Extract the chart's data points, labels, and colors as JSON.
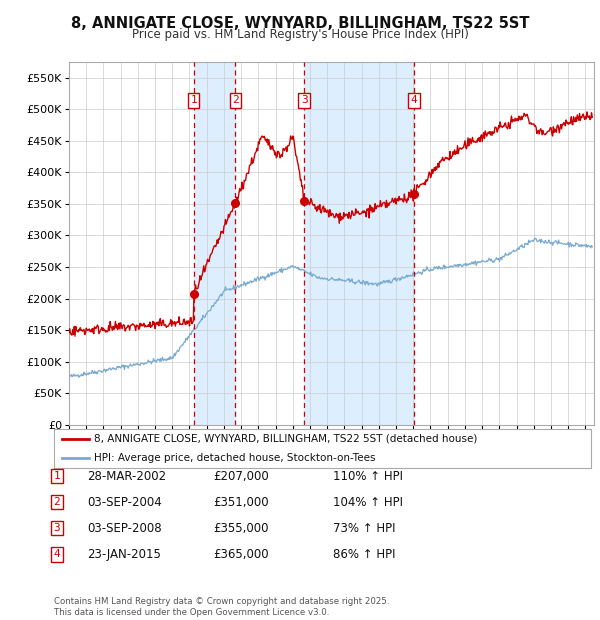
{
  "title1": "8, ANNIGATE CLOSE, WYNYARD, BILLINGHAM, TS22 5ST",
  "title2": "Price paid vs. HM Land Registry's House Price Index (HPI)",
  "ylabel_values": [
    "£0",
    "£50K",
    "£100K",
    "£150K",
    "£200K",
    "£250K",
    "£300K",
    "£350K",
    "£400K",
    "£450K",
    "£500K",
    "£550K"
  ],
  "yticks": [
    0,
    50000,
    100000,
    150000,
    200000,
    250000,
    300000,
    350000,
    400000,
    450000,
    500000,
    550000
  ],
  "ylim": [
    0,
    575000
  ],
  "xlim_start": 1995.0,
  "xlim_end": 2025.5,
  "sales": [
    {
      "label": "1",
      "date_num": 2002.24,
      "price": 207000,
      "date_str": "28-MAR-2002",
      "pct": "110%"
    },
    {
      "label": "2",
      "date_num": 2004.67,
      "price": 351000,
      "date_str": "03-SEP-2004",
      "pct": "104%"
    },
    {
      "label": "3",
      "date_num": 2008.67,
      "price": 355000,
      "date_str": "03-SEP-2008",
      "pct": "73%"
    },
    {
      "label": "4",
      "date_num": 2015.06,
      "price": 365000,
      "date_str": "23-JAN-2015",
      "pct": "86%"
    }
  ],
  "legend1": "8, ANNIGATE CLOSE, WYNYARD, BILLINGHAM, TS22 5ST (detached house)",
  "legend2": "HPI: Average price, detached house, Stockton-on-Tees",
  "footnote": "Contains HM Land Registry data © Crown copyright and database right 2025.\nThis data is licensed under the Open Government Licence v3.0.",
  "red_color": "#cc0000",
  "blue_color": "#7aabcf",
  "shade_color": "#ddeeff",
  "grid_color": "#cccccc",
  "background_color": "#ffffff"
}
